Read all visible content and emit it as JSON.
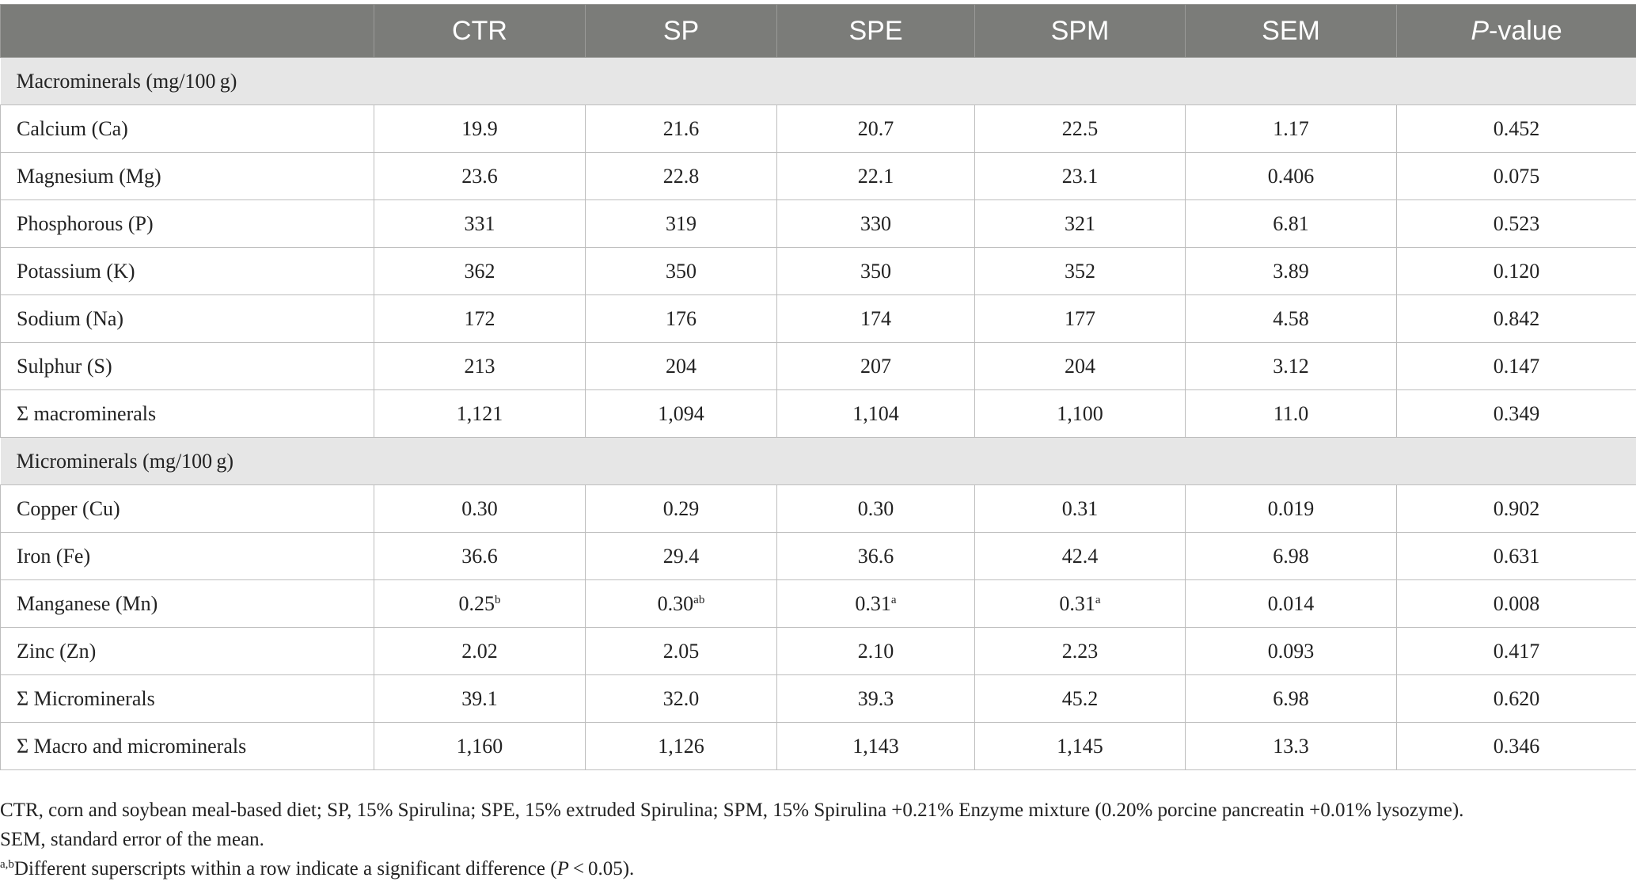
{
  "table": {
    "header": [
      "CTR",
      "SP",
      "SPE",
      "SPM",
      "SEM",
      [
        {
          "text": "P",
          "style": "italic"
        },
        {
          "text": "-value"
        }
      ]
    ],
    "sections": [
      {
        "title": "Macrominerals (mg/100 g)",
        "rows": [
          {
            "label": "Calcium (Ca)",
            "cells": [
              "19.9",
              "21.6",
              "20.7",
              "22.5",
              "1.17",
              "0.452"
            ]
          },
          {
            "label": "Magnesium (Mg)",
            "cells": [
              "23.6",
              "22.8",
              "22.1",
              "23.1",
              "0.406",
              "0.075"
            ]
          },
          {
            "label": "Phosphorous (P)",
            "cells": [
              "331",
              "319",
              "330",
              "321",
              "6.81",
              "0.523"
            ]
          },
          {
            "label": "Potassium (K)",
            "cells": [
              "362",
              "350",
              "350",
              "352",
              "3.89",
              "0.120"
            ]
          },
          {
            "label": "Sodium (Na)",
            "cells": [
              "172",
              "176",
              "174",
              "177",
              "4.58",
              "0.842"
            ]
          },
          {
            "label": "Sulphur (S)",
            "cells": [
              "213",
              "204",
              "207",
              "204",
              "3.12",
              "0.147"
            ]
          },
          {
            "label": "Σ macrominerals",
            "cells": [
              "1,121",
              "1,094",
              "1,104",
              "1,100",
              "11.0",
              "0.349"
            ]
          }
        ]
      },
      {
        "title": "Microminerals (mg/100 g)",
        "rows": [
          {
            "label": "Copper (Cu)",
            "cells": [
              "0.30",
              "0.29",
              "0.30",
              "0.31",
              "0.019",
              "0.902"
            ]
          },
          {
            "label": "Iron (Fe)",
            "cells": [
              "36.6",
              "29.4",
              "36.6",
              "42.4",
              "6.98",
              "0.631"
            ]
          },
          {
            "label": "Manganese (Mn)",
            "cells": [
              [
                {
                  "text": "0.25"
                },
                {
                  "text": "b",
                  "style": "sup"
                }
              ],
              [
                {
                  "text": "0.30"
                },
                {
                  "text": "ab",
                  "style": "sup"
                }
              ],
              [
                {
                  "text": "0.31"
                },
                {
                  "text": "a",
                  "style": "sup"
                }
              ],
              [
                {
                  "text": "0.31"
                },
                {
                  "text": "a",
                  "style": "sup"
                }
              ],
              "0.014",
              "0.008"
            ]
          },
          {
            "label": "Zinc (Zn)",
            "cells": [
              "2.02",
              "2.05",
              "2.10",
              "2.23",
              "0.093",
              "0.417"
            ]
          },
          {
            "label": "Σ Microminerals",
            "cells": [
              "39.1",
              "32.0",
              "39.3",
              "45.2",
              "6.98",
              "0.620"
            ]
          },
          {
            "label": "Σ Macro and microminerals",
            "cells": [
              "1,160",
              "1,126",
              "1,143",
              "1,145",
              "13.3",
              "0.346"
            ]
          }
        ]
      }
    ]
  },
  "footnotes": [
    "CTR, corn and soybean meal-based diet; SP, 15% Spirulina; SPE, 15% extruded Spirulina; SPM, 15% Spirulina +0.21% Enzyme mixture (0.20% porcine pancreatin +0.01% lysozyme).",
    "SEM, standard error of the mean.",
    [
      {
        "text": "a,b",
        "style": "sup"
      },
      {
        "text": "Different superscripts within a row indicate a significant difference ("
      },
      {
        "text": "P",
        "style": "italic"
      },
      {
        "text": " < 0.05)."
      }
    ]
  ]
}
